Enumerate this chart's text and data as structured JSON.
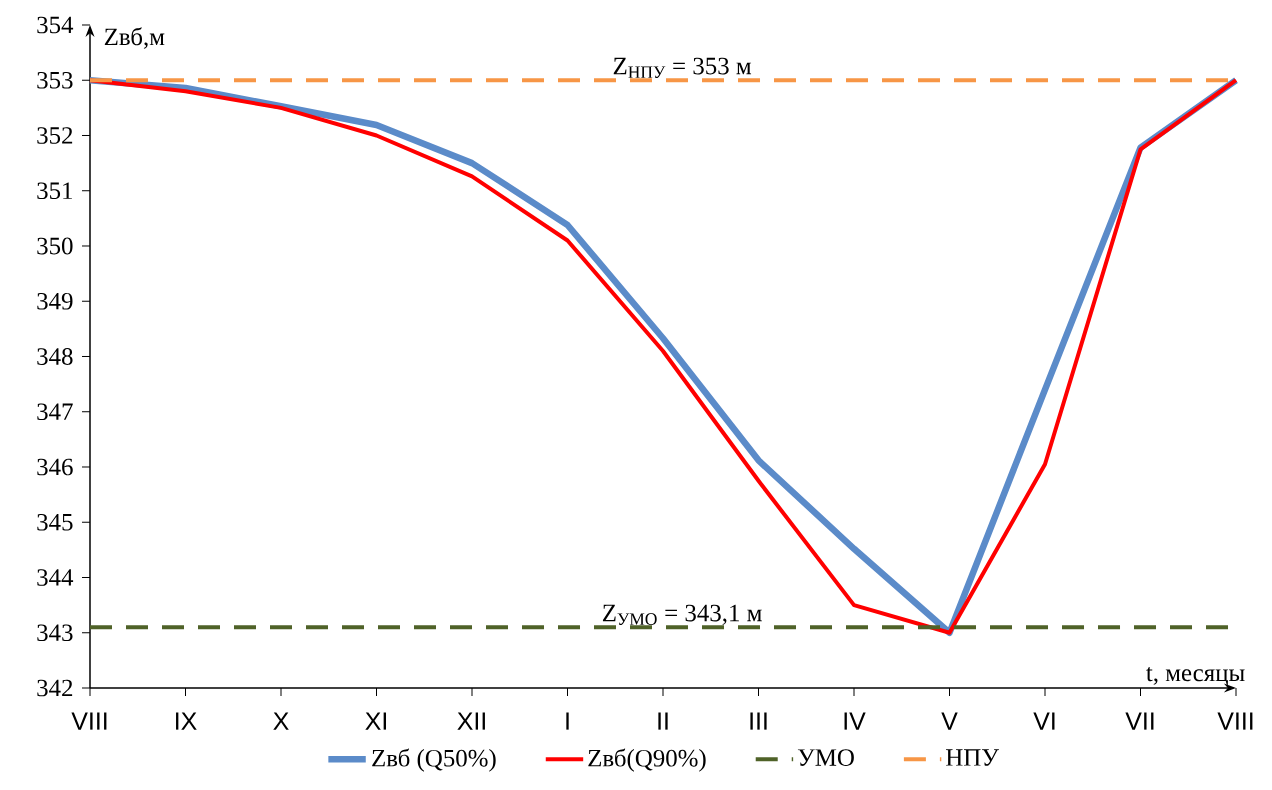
{
  "chart_data": {
    "type": "line",
    "xlabel": "t, месяцы",
    "ylabel": "Zвб,м",
    "categories": [
      "VIII",
      "IX",
      "X",
      "XI",
      "XII",
      "I",
      "II",
      "III",
      "IV",
      "V",
      "VI",
      "VII",
      "VIII"
    ],
    "series": [
      {
        "name": "Zвб (Q50%)",
        "color": "#5b8bc9",
        "values": [
          353,
          352.86,
          352.53,
          352.19,
          351.5,
          350.38,
          348.33,
          346.12,
          344.52,
          343.0,
          347.4,
          351.78,
          353
        ]
      },
      {
        "name": "Zвб(Q90%)",
        "color": "#ff0000",
        "values": [
          353,
          352.8,
          352.5,
          352.0,
          351.26,
          350.1,
          348.1,
          345.75,
          343.5,
          343.0,
          346.05,
          351.75,
          353
        ]
      },
      {
        "name": "УМО",
        "color": "#4f6228",
        "line_style": "dashed",
        "values": [
          343.1,
          343.1,
          343.1,
          343.1,
          343.1,
          343.1,
          343.1,
          343.1,
          343.1,
          343.1,
          343.1,
          343.1,
          343.1
        ]
      },
      {
        "name": "НПУ",
        "color": "#f79646",
        "line_style": "dashed",
        "values": [
          353,
          353,
          353,
          353,
          353,
          353,
          353,
          353,
          353,
          353,
          353,
          353,
          353
        ]
      }
    ],
    "annotations": [
      {
        "text": "Z$_{НПУ}$ = 353 м",
        "y": 353
      },
      {
        "text": "Z$_{УМО}$ = 343,1 м",
        "y": 343.1
      }
    ],
    "ylim": [
      342,
      354
    ],
    "yticks": [
      342,
      343,
      344,
      345,
      346,
      347,
      348,
      349,
      350,
      351,
      352,
      353,
      354
    ],
    "legend": "bottom",
    "marker": "none",
    "line_style": "solid"
  }
}
